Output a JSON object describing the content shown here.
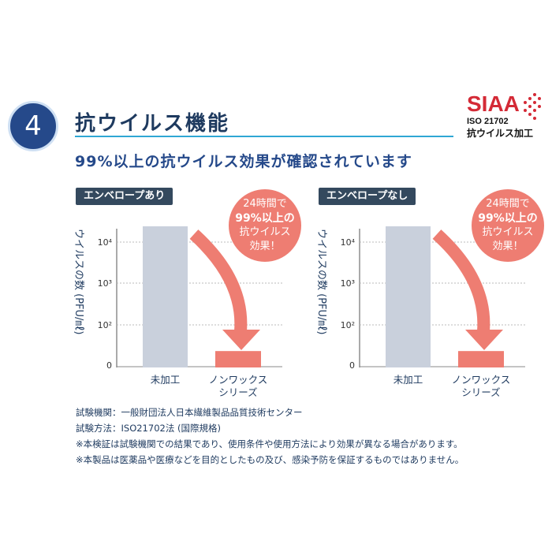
{
  "section": {
    "number": "4",
    "title": "抗ウイルス機能",
    "subtitle": "99%以上の抗ウイルス効果が確認されています"
  },
  "certification": {
    "mark": "SIAA",
    "standard": "ISO 21702",
    "label": "抗ウイルス加工"
  },
  "callout": {
    "line1": "24時間で",
    "line2": "99%以上の",
    "line3": "抗ウイルス",
    "line4": "効果！"
  },
  "footer": {
    "line1": "試験機関：一般財団法人日本繊維製品品質技術センター",
    "line2": "試験方法：ISO21702法 (国際規格)",
    "line3": "※本検証は試験機関での結果であり、使用条件や使用方法により効果が異なる場合があります。",
    "line4": "※本製品は医薬品や医療などを目的としたもの及び、感染予防を保証するものではありません。"
  },
  "colors": {
    "untreated_bar": "#c9d0dc",
    "treated_bar": "#ee7d72",
    "arrow": "#ee7d72",
    "label_bg": "#34495e",
    "accent_line": "#2fa7d4"
  },
  "chart_data": [
    {
      "type": "bar",
      "title": "エンベロープあり",
      "ylabel": "ウイルスの数 (PFU/㎖)",
      "yscale": "log",
      "yticks": [
        "0",
        "10²",
        "10³",
        "10⁴"
      ],
      "categories": [
        "未加工",
        "ノンワックス\nシリーズ"
      ],
      "values": [
        30000,
        5
      ],
      "grid": true
    },
    {
      "type": "bar",
      "title": "エンベロープなし",
      "ylabel": "ウイルスの数 (PFU/㎖)",
      "yscale": "log",
      "yticks": [
        "0",
        "10²",
        "10³",
        "10⁴"
      ],
      "categories": [
        "未加工",
        "ノンワックス\nシリーズ"
      ],
      "values": [
        30000,
        5
      ],
      "grid": true
    }
  ]
}
